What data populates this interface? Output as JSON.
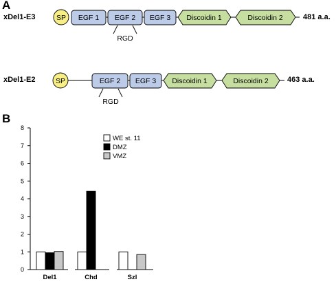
{
  "panel_a": {
    "letter": "A",
    "constructs": [
      {
        "name": "xDel1-E3",
        "length_label": "481 a.a.",
        "signal": "SP",
        "egf": [
          "EGF 1",
          "EGF 2",
          "EGF 3"
        ],
        "discoidin": [
          "Discoidin 1",
          "Discoidin 2"
        ],
        "motif": "RGD"
      },
      {
        "name": "xDel1-E2",
        "length_label": "463 a.a.",
        "signal": "SP",
        "egf": [
          "EGF 2",
          "EGF 3"
        ],
        "discoidin": [
          "Discoidin 1",
          "Discoidin 2"
        ],
        "motif": "RGD"
      }
    ],
    "colors": {
      "sp": "#f7ef86",
      "egf": "#bccbe7",
      "discoidin": "#c6dfa0"
    }
  },
  "panel_b": {
    "letter": "B",
    "chart_data": {
      "type": "bar",
      "categories": [
        "Del1",
        "Chd",
        "Szl"
      ],
      "series": [
        {
          "name": "WE st. 11",
          "color": "#ffffff",
          "values": [
            1.0,
            1.0,
            1.0
          ]
        },
        {
          "name": "DMZ",
          "color": "#000000",
          "values": [
            0.95,
            4.42,
            null
          ]
        },
        {
          "name": "VMZ",
          "color": "#c8c8c8",
          "values": [
            1.02,
            null,
            0.85
          ]
        }
      ],
      "ylim": [
        0,
        8
      ],
      "yticks": [
        "0",
        "1",
        "2",
        "3",
        "4",
        "5",
        "6",
        "7",
        "8"
      ],
      "legend_position": "top-right"
    }
  }
}
